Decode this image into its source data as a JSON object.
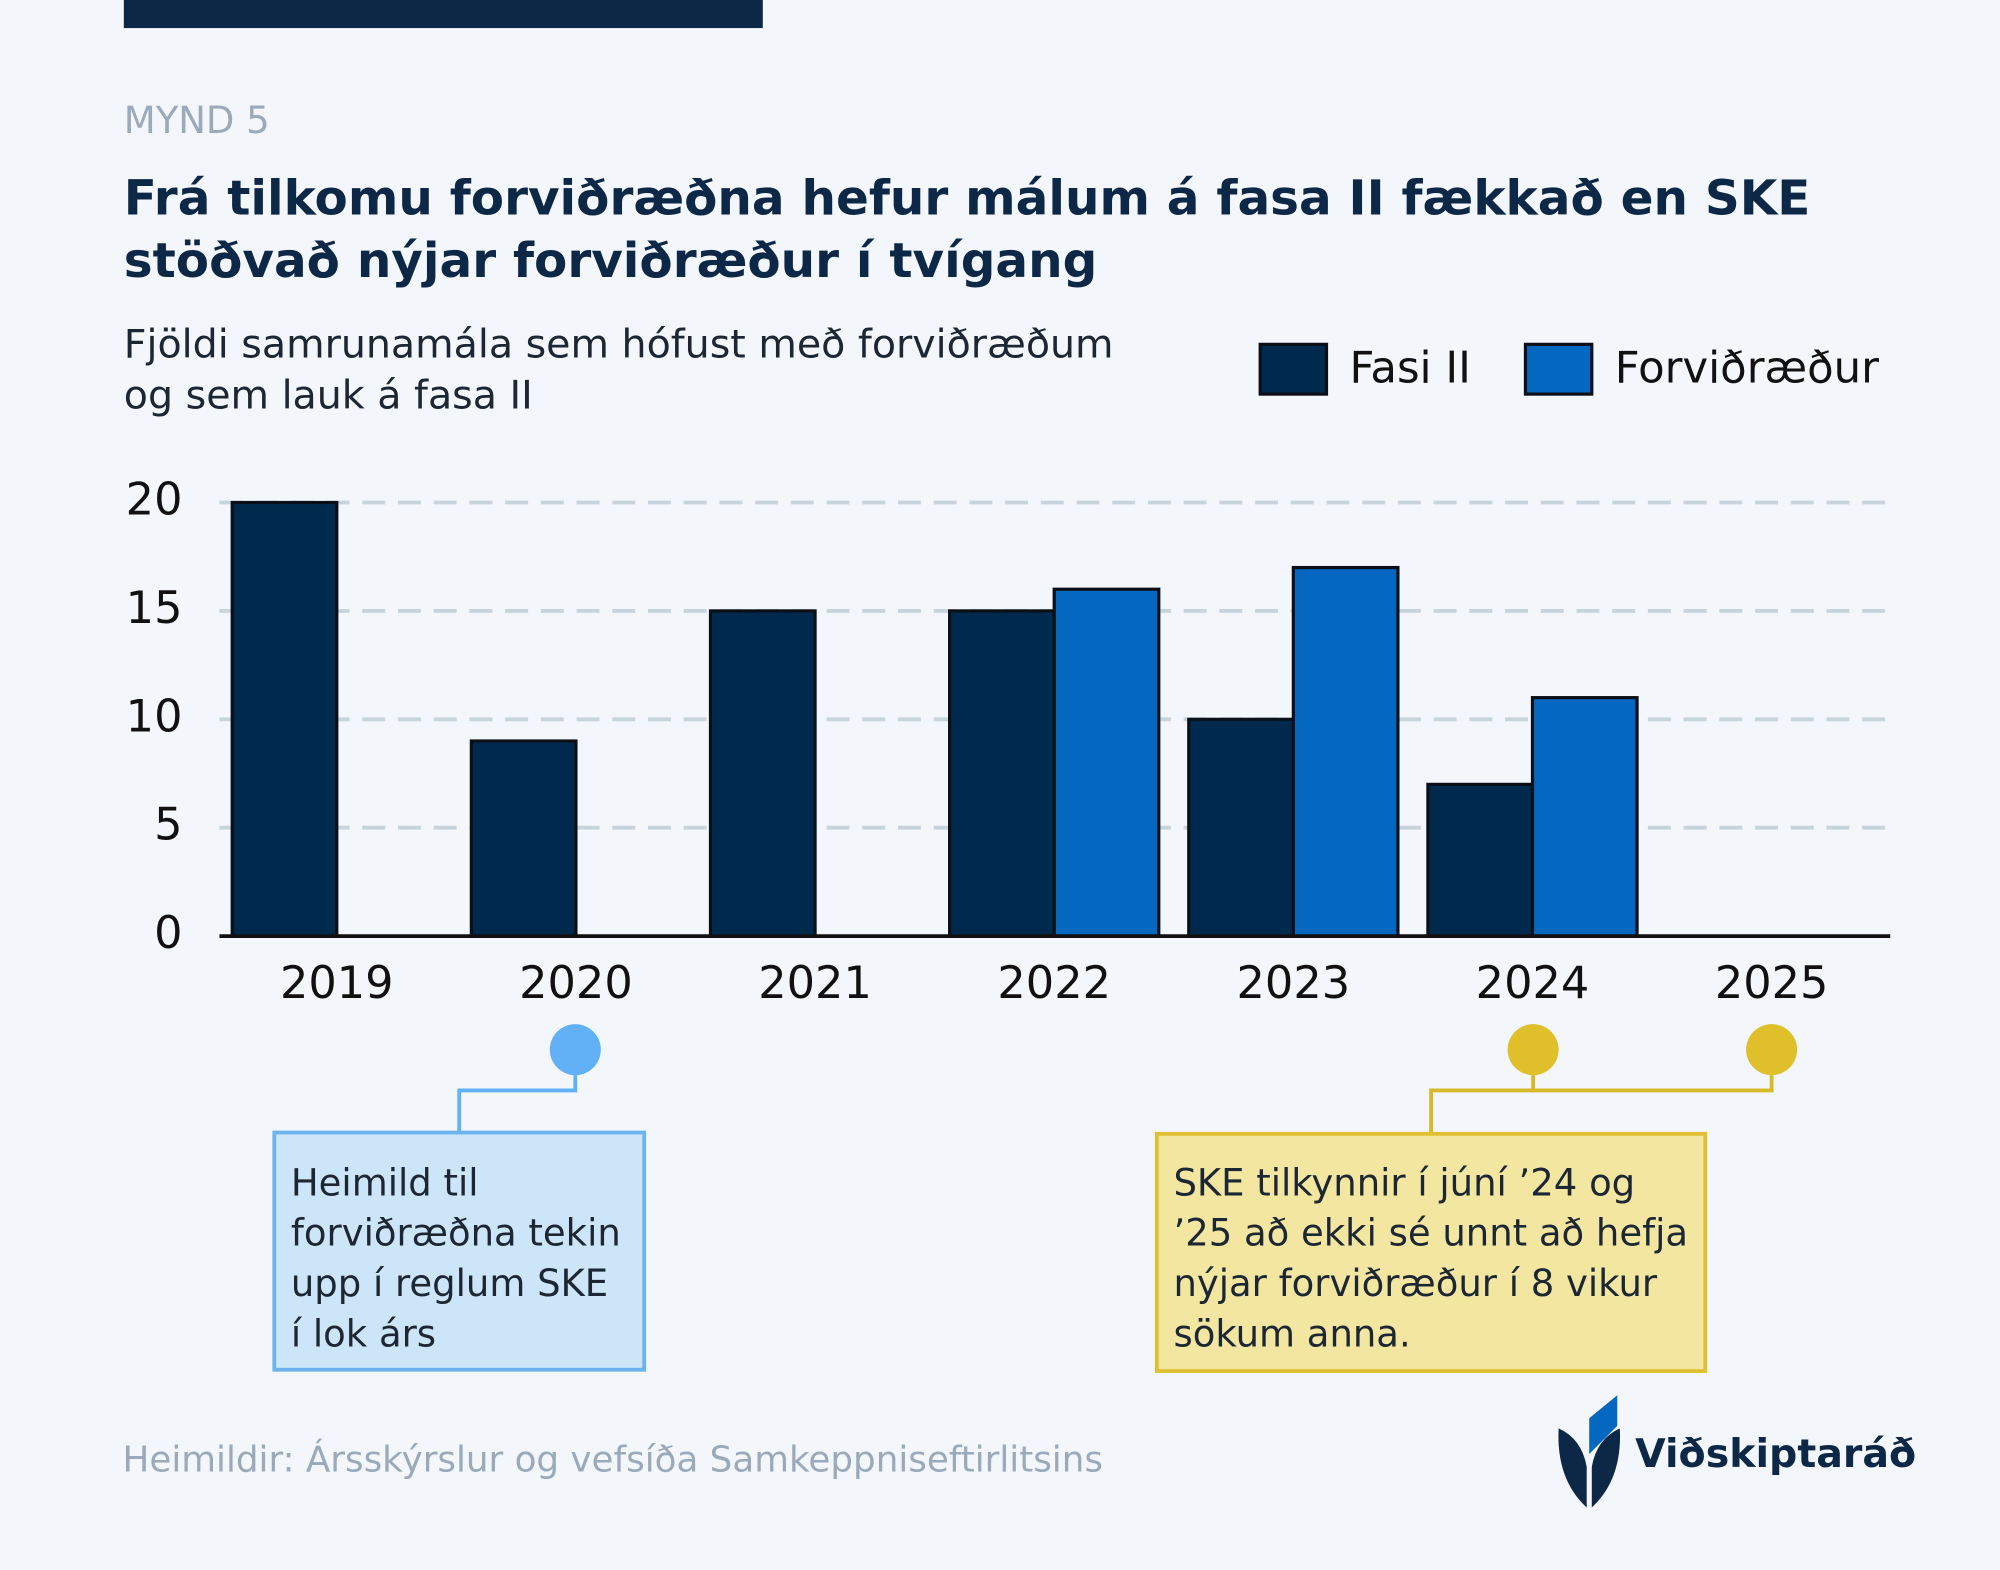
{
  "chart_data": {
    "type": "bar",
    "label": "MYND 5",
    "title": [
      "Frá tilkomu forviðræðna hefur málum á fasa II fækkað en SKE",
      "stöðvað nýjar forviðræður í tvígang"
    ],
    "subtitle": [
      "Fjöldi samrunamála sem hófust með forviðræðum",
      "og sem lauk á fasa II"
    ],
    "categories": [
      "2019",
      "2020",
      "2021",
      "2022",
      "2023",
      "2024",
      "2025"
    ],
    "series": [
      {
        "name": "Fasi II",
        "color": "#002a4d",
        "values": [
          20,
          9,
          15,
          15,
          10,
          7,
          null
        ]
      },
      {
        "name": "Forviðræður",
        "color": "#0468c0",
        "values": [
          null,
          null,
          null,
          16,
          17,
          11,
          null
        ]
      }
    ],
    "ylim": [
      0,
      20
    ],
    "yticks": [
      0,
      5,
      10,
      15,
      20
    ],
    "grid": true,
    "legend": "top-right",
    "annotations": [
      {
        "lines": [
          "Heimild til",
          "forviðræðna tekin",
          "upp í reglum SKE",
          "í lok árs"
        ]
      },
      {
        "lines": [
          "SKE tilkynnir í júní ’24 og",
          "’25 að ekki sé unnt að hefja",
          "nýjar forviðræður í 8 vikur",
          "sökum anna."
        ]
      }
    ],
    "source": "Heimildir: Ársskýrslur og vefsíða Samkeppniseftirlitsins",
    "logo": "Viðskiptaráð"
  }
}
